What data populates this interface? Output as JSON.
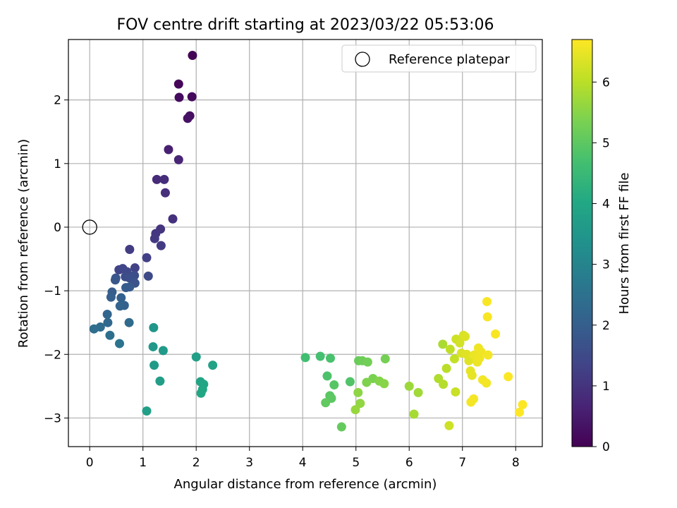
{
  "chart_data": {
    "type": "scatter",
    "title": "FOV centre drift starting at 2023/03/22 05:53:06",
    "xlabel": "Angular distance from reference (arcmin)",
    "ylabel": "Rotation from reference (arcmin)",
    "xlim": [
      -0.4,
      8.5
    ],
    "ylim": [
      -3.45,
      2.95
    ],
    "xticks": [
      0,
      1,
      2,
      3,
      4,
      5,
      6,
      7,
      8
    ],
    "yticks": [
      -3,
      -2,
      -1,
      0,
      1,
      2
    ],
    "grid": true,
    "legend": {
      "location": "top-right",
      "entries": [
        "Reference platepar"
      ]
    },
    "reference_point": {
      "x": 0,
      "y": 0
    },
    "colorbar": {
      "label": "Hours from first FF file",
      "colormap": "viridis",
      "range": [
        0,
        6.7
      ],
      "ticks": [
        0,
        1,
        2,
        3,
        4,
        5,
        6
      ]
    },
    "series": [
      {
        "columns": [
          "x",
          "y",
          "hours"
        ],
        "points": [
          [
            1.93,
            2.7,
            0.05
          ],
          [
            1.67,
            2.25,
            0.1
          ],
          [
            1.92,
            2.05,
            0.15
          ],
          [
            1.68,
            2.04,
            0.2
          ],
          [
            1.88,
            1.75,
            0.25
          ],
          [
            1.84,
            1.71,
            0.3
          ],
          [
            1.48,
            1.22,
            0.6
          ],
          [
            1.67,
            1.06,
            0.7
          ],
          [
            1.26,
            0.75,
            0.8
          ],
          [
            1.4,
            0.75,
            0.85
          ],
          [
            1.42,
            0.54,
            0.9
          ],
          [
            1.56,
            0.13,
            0.95
          ],
          [
            1.33,
            -0.03,
            1.0
          ],
          [
            1.24,
            -0.1,
            1.05
          ],
          [
            1.22,
            -0.18,
            1.1
          ],
          [
            1.34,
            -0.29,
            1.15
          ],
          [
            0.75,
            -0.35,
            1.2
          ],
          [
            1.07,
            -0.48,
            1.25
          ],
          [
            0.85,
            -0.64,
            1.3
          ],
          [
            0.55,
            -0.67,
            1.35
          ],
          [
            0.62,
            -0.65,
            1.4
          ],
          [
            0.7,
            -0.7,
            1.45
          ],
          [
            1.1,
            -0.77,
            1.5
          ],
          [
            0.67,
            -0.78,
            1.55
          ],
          [
            0.84,
            -0.76,
            1.6
          ],
          [
            0.75,
            -0.8,
            1.65
          ],
          [
            0.85,
            -0.88,
            1.7
          ],
          [
            0.49,
            -0.8,
            1.75
          ],
          [
            0.48,
            -0.83,
            1.8
          ],
          [
            0.75,
            -0.94,
            1.85
          ],
          [
            0.68,
            -0.95,
            1.9
          ],
          [
            0.42,
            -1.02,
            1.95
          ],
          [
            0.4,
            -1.1,
            2.0
          ],
          [
            0.59,
            -1.11,
            2.05
          ],
          [
            0.65,
            -1.23,
            2.1
          ],
          [
            0.57,
            -1.24,
            2.15
          ],
          [
            0.33,
            -1.37,
            2.2
          ],
          [
            0.34,
            -1.5,
            2.25
          ],
          [
            0.74,
            -1.5,
            2.3
          ],
          [
            0.2,
            -1.57,
            2.35
          ],
          [
            0.08,
            -1.6,
            2.4
          ],
          [
            0.38,
            -1.7,
            2.45
          ],
          [
            0.56,
            -1.83,
            2.55
          ],
          [
            1.2,
            -1.58,
            3.5
          ],
          [
            1.19,
            -1.88,
            3.55
          ],
          [
            1.38,
            -1.94,
            3.6
          ],
          [
            1.21,
            -2.17,
            3.65
          ],
          [
            1.32,
            -2.42,
            3.7
          ],
          [
            1.07,
            -2.89,
            3.75
          ],
          [
            2.0,
            -2.04,
            3.8
          ],
          [
            2.31,
            -2.17,
            3.85
          ],
          [
            2.08,
            -2.43,
            3.9
          ],
          [
            2.14,
            -2.47,
            3.92
          ],
          [
            2.12,
            -2.55,
            3.95
          ],
          [
            2.09,
            -2.61,
            4.0
          ],
          [
            4.05,
            -2.05,
            4.65
          ],
          [
            4.33,
            -2.03,
            4.7
          ],
          [
            4.52,
            -2.06,
            4.75
          ],
          [
            4.46,
            -2.34,
            4.8
          ],
          [
            4.89,
            -2.43,
            4.85
          ],
          [
            4.59,
            -2.48,
            4.9
          ],
          [
            4.51,
            -2.65,
            4.95
          ],
          [
            4.54,
            -2.69,
            5.0
          ],
          [
            4.43,
            -2.76,
            5.05
          ],
          [
            4.73,
            -3.14,
            5.1
          ],
          [
            5.05,
            -2.1,
            5.15
          ],
          [
            5.12,
            -2.1,
            5.2
          ],
          [
            5.22,
            -2.12,
            5.25
          ],
          [
            5.55,
            -2.07,
            5.3
          ],
          [
            5.32,
            -2.38,
            5.35
          ],
          [
            5.2,
            -2.44,
            5.4
          ],
          [
            5.44,
            -2.42,
            5.45
          ],
          [
            5.53,
            -2.46,
            5.5
          ],
          [
            5.04,
            -2.6,
            5.55
          ],
          [
            5.08,
            -2.77,
            5.6
          ],
          [
            4.99,
            -2.87,
            5.65
          ],
          [
            6.0,
            -2.5,
            5.7
          ],
          [
            6.17,
            -2.6,
            5.75
          ],
          [
            6.09,
            -2.94,
            5.8
          ],
          [
            6.63,
            -1.84,
            5.85
          ],
          [
            6.55,
            -2.38,
            5.9
          ],
          [
            6.64,
            -2.47,
            5.95
          ],
          [
            6.7,
            -2.22,
            6.0
          ],
          [
            6.77,
            -1.92,
            6.05
          ],
          [
            6.85,
            -2.07,
            6.1
          ],
          [
            6.87,
            -2.59,
            6.15
          ],
          [
            6.75,
            -3.12,
            6.2
          ],
          [
            6.88,
            -1.76,
            6.2
          ],
          [
            6.95,
            -1.82,
            6.25
          ],
          [
            7.02,
            -1.7,
            6.3
          ],
          [
            7.05,
            -1.72,
            6.35
          ],
          [
            6.98,
            -1.98,
            6.35
          ],
          [
            7.08,
            -2.0,
            6.4
          ],
          [
            7.12,
            -2.1,
            6.4
          ],
          [
            7.15,
            -2.26,
            6.45
          ],
          [
            7.18,
            -2.33,
            6.45
          ],
          [
            7.22,
            -2.01,
            6.5
          ],
          [
            7.28,
            -2.12,
            6.5
          ],
          [
            7.3,
            -1.9,
            6.55
          ],
          [
            7.35,
            -1.96,
            6.55
          ],
          [
            7.32,
            -2.06,
            6.55
          ],
          [
            7.38,
            -2.4,
            6.6
          ],
          [
            7.45,
            -2.45,
            6.6
          ],
          [
            7.48,
            -2.01,
            6.6
          ],
          [
            7.16,
            -2.75,
            6.62
          ],
          [
            7.21,
            -2.7,
            6.62
          ],
          [
            7.46,
            -1.17,
            6.65
          ],
          [
            7.47,
            -1.41,
            6.65
          ],
          [
            7.62,
            -1.68,
            6.65
          ],
          [
            7.86,
            -2.35,
            6.68
          ],
          [
            8.07,
            -2.91,
            6.7
          ],
          [
            8.13,
            -2.79,
            6.7
          ]
        ]
      }
    ]
  }
}
